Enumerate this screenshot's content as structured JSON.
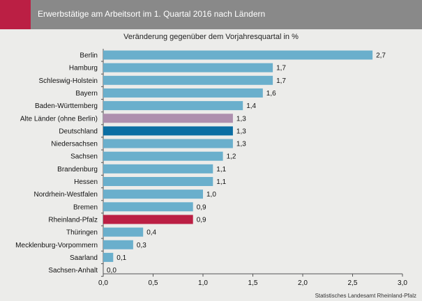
{
  "header": {
    "title": "Erwerbstätige am Arbeitsort im 1. Quartal 2016 nach Ländern"
  },
  "source": "Statistisches Landesamt Rheinland-Pfalz",
  "colors": {
    "header_bg": "#898989",
    "accent": "#bb1f44",
    "bar_default": "#6aafcc",
    "bar_alte_laender": "#ae8fae",
    "bar_deutschland": "#0b6ea3",
    "bar_rheinland_pfalz": "#bb1f44",
    "background": "#ececea"
  },
  "chart_data": {
    "type": "bar",
    "orientation": "horizontal",
    "title": "Veränderung gegenüber dem Vorjahresquartal in %",
    "categories": [
      "Berlin",
      "Hamburg",
      "Schleswig-Holstein",
      "Bayern",
      "Baden-Württemberg",
      "Alte Länder (ohne Berlin)",
      "Deutschland",
      "Niedersachsen",
      "Sachsen",
      "Brandenburg",
      "Hessen",
      "Nordrhein-Westfalen",
      "Bremen",
      "Rheinland-Pfalz",
      "Thüringen",
      "Mecklenburg-Vorpommern",
      "Saarland",
      "Sachsen-Anhalt"
    ],
    "values": [
      2.7,
      1.7,
      1.7,
      1.6,
      1.4,
      1.3,
      1.3,
      1.3,
      1.2,
      1.1,
      1.1,
      1.0,
      0.9,
      0.9,
      0.4,
      0.3,
      0.1,
      0.0
    ],
    "value_labels": [
      "2,7",
      "1,7",
      "1,7",
      "1,6",
      "1,4",
      "1,3",
      "1,3",
      "1,3",
      "1,2",
      "1,1",
      "1,1",
      "1,0",
      "0,9",
      "0,9",
      "0,4",
      "0,3",
      "0,1",
      "0,0"
    ],
    "highlight": {
      "Alte Länder (ohne Berlin)": "#ae8fae",
      "Deutschland": "#0b6ea3",
      "Rheinland-Pfalz": "#bb1f44"
    },
    "xlim": [
      0,
      3.0
    ],
    "xticks": [
      0,
      0.5,
      1.0,
      1.5,
      2.0,
      2.5,
      3.0
    ],
    "xtick_labels": [
      "0,0",
      "0,5",
      "1,0",
      "1,5",
      "2,0",
      "2,5",
      "3,0"
    ],
    "grid": false,
    "legend": "none"
  }
}
